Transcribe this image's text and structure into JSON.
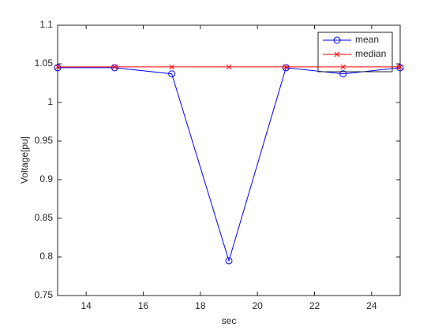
{
  "chart_data": {
    "type": "line",
    "x_label": "sec",
    "y_label": "Voltage[pu]",
    "x": [
      13,
      15,
      17,
      19,
      21,
      23,
      25
    ],
    "series": [
      {
        "name": "mean",
        "color": "#0000ff",
        "marker": "circle",
        "values": [
          1.045,
          1.045,
          1.037,
          0.795,
          1.045,
          1.037,
          1.045
        ]
      },
      {
        "name": "median",
        "color": "#ff0000",
        "marker": "x",
        "values": [
          1.046,
          1.046,
          1.046,
          1.046,
          1.046,
          1.046,
          1.046
        ]
      }
    ],
    "xlim": [
      13,
      25
    ],
    "xticks": [
      14,
      16,
      18,
      20,
      22,
      24
    ],
    "ylim": [
      0.75,
      1.1
    ],
    "yticks": [
      0.75,
      0.8,
      0.85,
      0.9,
      0.95,
      1,
      1.05,
      1.1
    ],
    "grid": false,
    "legend": "northeast"
  }
}
